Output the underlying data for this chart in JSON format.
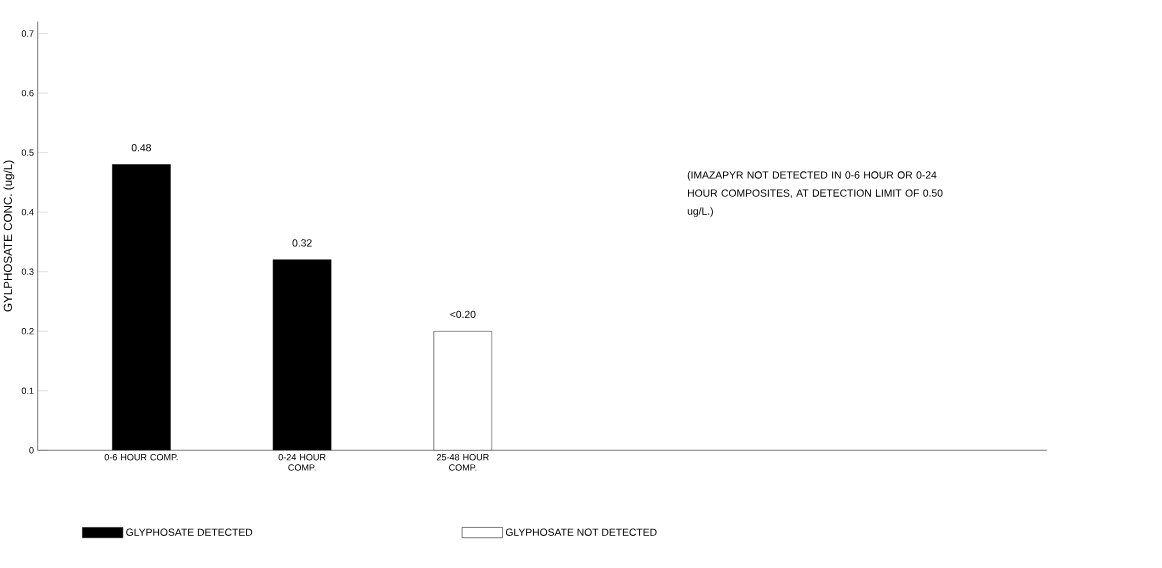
{
  "chart_data": {
    "type": "bar",
    "ylabel": "GYLPHOSATE CONC. (ug/L)",
    "categories": [
      "0-6 HOUR COMP.",
      "0-24 HOUR COMP.",
      "25-48 HOUR COMP."
    ],
    "series": [
      {
        "name": "GLYPHOSATE DETECTED",
        "color": "#000000",
        "values": [
          0.48,
          0.32,
          null
        ],
        "value_labels": [
          "0.48",
          "0.32",
          null
        ]
      },
      {
        "name": "GLYPHOSATE NOT DETECTED",
        "color": "#ffffff",
        "values": [
          null,
          null,
          0.2
        ],
        "value_labels": [
          null,
          null,
          "<0.20"
        ]
      }
    ],
    "ylim": [
      0,
      0.72
    ],
    "yticks": [
      0,
      0.1,
      0.2,
      0.3,
      0.4,
      0.5,
      0.6,
      0.7
    ],
    "legend": "bottom",
    "annotations": [
      "(IMAZAPYR NOT DETECTED IN 0-6 HOUR OR 0-24 HOUR COMPOSITES, AT DETECTION LIMIT OF 0.50 ug/L.)"
    ]
  }
}
